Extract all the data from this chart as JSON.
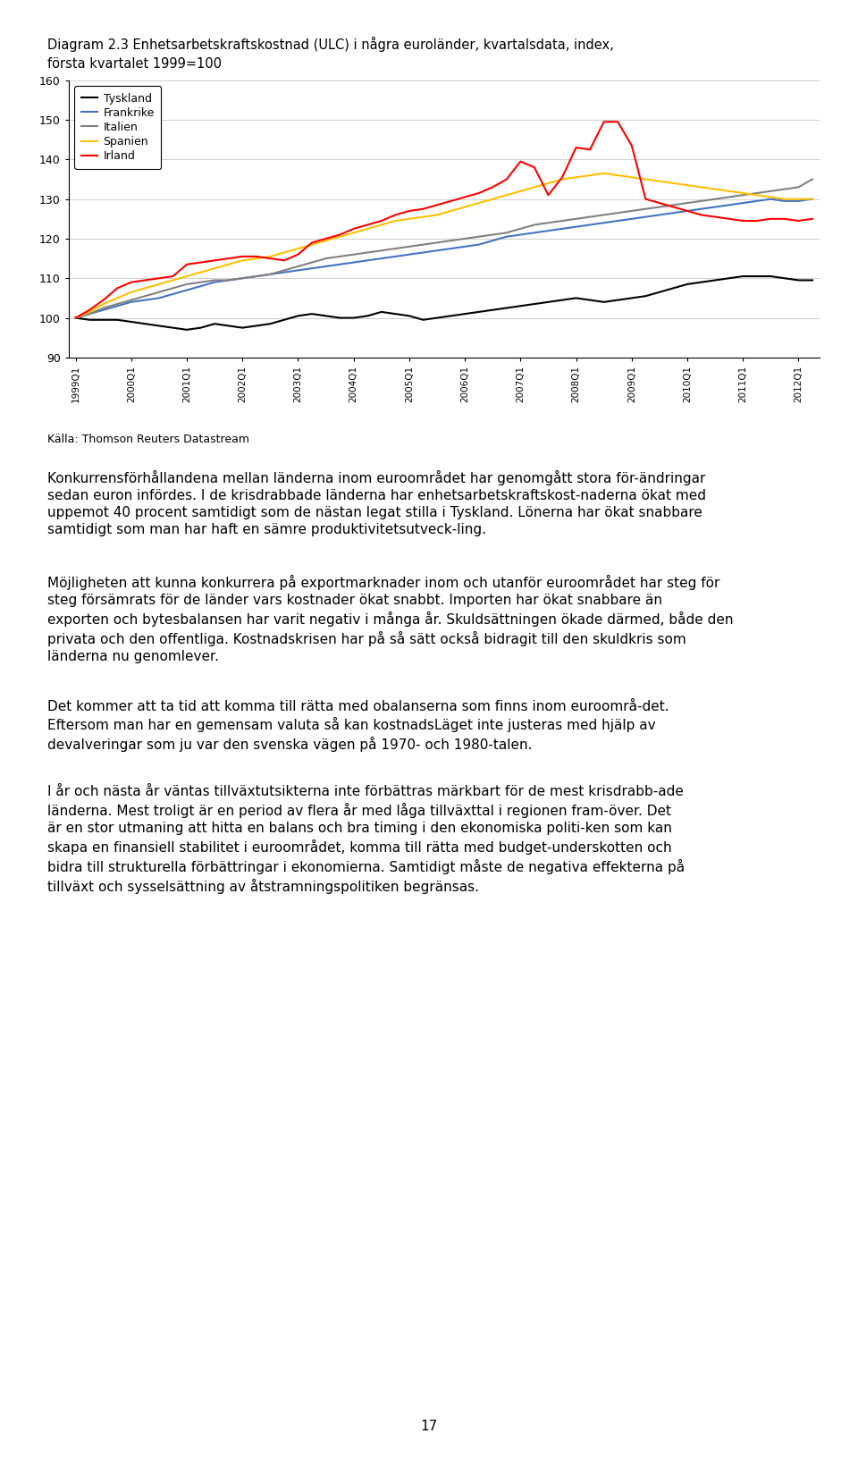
{
  "title_line1": "Diagram 2.3 Enhetsarbetskraftskostnad (ULC) i några euroländer, kvartalsdata, index,",
  "title_line2": "första kvartalet 1999=100",
  "source": "Källa: Thomson Reuters Datastream",
  "legend_labels": [
    "Tyskland",
    "Frankrike",
    "Italien",
    "Spanien",
    "Irland"
  ],
  "line_colors": [
    "#000000",
    "#4472C4",
    "#808080",
    "#FFC000",
    "#FF0000"
  ],
  "x_labels": [
    "1999Q1",
    "2000Q1",
    "2001Q1",
    "2002Q1",
    "2003Q1",
    "2004Q1",
    "2005Q1",
    "2006Q1",
    "2007Q1",
    "2008Q1",
    "2009Q1",
    "2010Q1",
    "2011Q1",
    "2012Q1"
  ],
  "ylim": [
    90,
    160
  ],
  "yticks": [
    90,
    100,
    110,
    120,
    130,
    140,
    150,
    160
  ],
  "Deutschland": [
    100.0,
    99.5,
    99.5,
    99.5,
    99.0,
    98.5,
    98.0,
    97.5,
    97.0,
    97.5,
    98.5,
    98.0,
    97.5,
    98.0,
    98.5,
    99.5,
    100.5,
    101.0,
    100.5,
    100.0,
    100.0,
    100.5,
    101.5,
    101.0,
    100.5,
    99.5,
    100.0,
    100.5,
    101.0,
    101.5,
    102.0,
    102.5,
    103.0,
    103.5,
    104.0,
    104.5,
    105.0,
    104.5,
    104.0,
    104.5,
    105.0,
    105.5,
    106.5,
    107.5,
    108.5,
    109.0,
    109.5,
    110.0,
    110.5,
    110.5,
    110.5,
    110.0,
    109.5,
    109.5
  ],
  "Frankrike": [
    100.0,
    101.0,
    102.0,
    103.0,
    104.0,
    104.5,
    105.0,
    106.0,
    107.0,
    108.0,
    109.0,
    109.5,
    110.0,
    110.5,
    111.0,
    111.5,
    112.0,
    112.5,
    113.0,
    113.5,
    114.0,
    114.5,
    115.0,
    115.5,
    116.0,
    116.5,
    117.0,
    117.5,
    118.0,
    118.5,
    119.5,
    120.5,
    121.0,
    121.5,
    122.0,
    122.5,
    123.0,
    123.5,
    124.0,
    124.5,
    125.0,
    125.5,
    126.0,
    126.5,
    127.0,
    127.5,
    128.0,
    128.5,
    129.0,
    129.5,
    130.0,
    129.5,
    129.5,
    130.0
  ],
  "Italien": [
    100.0,
    101.0,
    102.5,
    103.5,
    104.5,
    105.5,
    106.5,
    107.5,
    108.5,
    109.0,
    109.5,
    109.5,
    110.0,
    110.5,
    111.0,
    112.0,
    113.0,
    114.0,
    115.0,
    115.5,
    116.0,
    116.5,
    117.0,
    117.5,
    118.0,
    118.5,
    119.0,
    119.5,
    120.0,
    120.5,
    121.0,
    121.5,
    122.5,
    123.5,
    124.0,
    124.5,
    125.0,
    125.5,
    126.0,
    126.5,
    127.0,
    127.5,
    128.0,
    128.5,
    129.0,
    129.5,
    130.0,
    130.5,
    131.0,
    131.5,
    132.0,
    132.5,
    133.0,
    135.0
  ],
  "Spanien": [
    100.0,
    101.5,
    103.5,
    105.0,
    106.5,
    107.5,
    108.5,
    109.5,
    110.5,
    111.5,
    112.5,
    113.5,
    114.5,
    115.0,
    115.5,
    116.5,
    117.5,
    118.5,
    119.5,
    120.5,
    121.5,
    122.5,
    123.5,
    124.5,
    125.0,
    125.5,
    126.0,
    127.0,
    128.0,
    129.0,
    130.0,
    131.0,
    132.0,
    133.0,
    134.0,
    135.0,
    135.5,
    136.0,
    136.5,
    136.0,
    135.5,
    135.0,
    134.5,
    134.0,
    133.5,
    133.0,
    132.5,
    132.0,
    131.5,
    131.0,
    130.5,
    130.0,
    130.0,
    130.0
  ],
  "Irland": [
    100.0,
    102.0,
    104.5,
    107.5,
    109.0,
    109.5,
    110.0,
    110.5,
    113.5,
    114.0,
    114.5,
    115.0,
    115.5,
    115.5,
    115.0,
    114.5,
    116.0,
    119.0,
    120.0,
    121.0,
    122.5,
    123.5,
    124.5,
    126.0,
    127.0,
    127.5,
    128.5,
    129.5,
    130.5,
    131.5,
    133.0,
    135.0,
    139.5,
    138.0,
    131.0,
    135.5,
    143.0,
    142.5,
    149.5,
    149.5,
    143.5,
    130.0,
    129.0,
    128.0,
    127.0,
    126.0,
    125.5,
    125.0,
    124.5,
    124.5,
    125.0,
    125.0,
    124.5,
    125.0
  ],
  "para1": "Konkurrensförhållandena mellan länderna inom euroområdet har genomgått stora för-ändringar sedan euron infördes. I de krisdrabbade länderna har enhetsarbetskraftskost-naderna ökat med uppemot 40 procent samtidigt som de nästan legat stilla i Tyskland. Lönerna har ökat snabbare samtidigt som man har haft en sämre produktivitetsutveck-ling.",
  "para2": "Möjligheten att kunna konkurrera på exportmarknader inom och utanför euroområdet har steg för steg försämrats för de länder vars kostnader ökat snabbt. Importen har ökat snabbare än exporten och bytesbalansen har varit negativ i många år. Skuldsättningen ökade därmed, både den privata och den offentliga. Kostnadskrisen har på så sätt också bidragit till den skuldkris som länderna nu genomlever.",
  "para3": "Det kommer att ta tid att komma till rätta med obalanserna som finns inom euroområ-det. Eftersom man har en gemensam valuta så kan kostnadsLäget inte justeras med hjälp av devalveringar som ju var den svenska vägen på 1970- och 1980-talen.",
  "para4": "I år och nästa år väntas tillväxtutsikterna inte förbättras märkbart för de mest krisdrabb-ade länderna. Mest troligt är en period av flera år med låga tillväxttal i regionen fram-över. Det är en stor utmaning att hitta en balans och bra timing i den ekonomiska politi-ken som kan skapa en finansiell stabilitet i euroområdet, komma till rätta med budget-underskotten och bidra till strukturella förbättringar i ekonomierna. Samtidigt måste de negativa effekterna på tillväxt och sysselsättning av åtstramningspolitiken begränsas.",
  "page_number": "17",
  "background_color": "#ffffff"
}
